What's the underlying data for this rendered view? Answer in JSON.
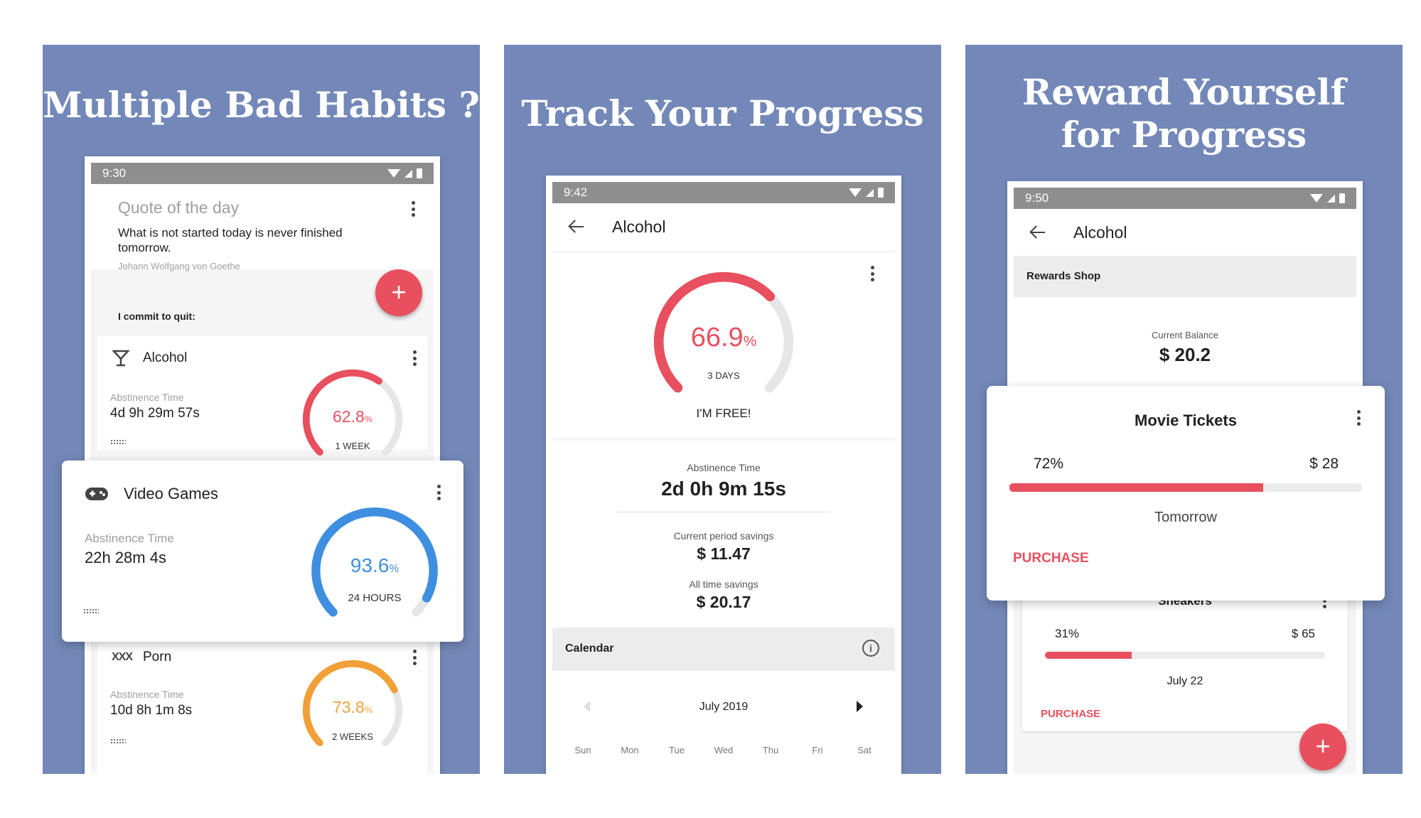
{
  "colors": {
    "panel_bg": "#7388b8",
    "accent_red": "#e8505f",
    "blue": "#3f8fe0",
    "orange": "#f0a037",
    "track": "#e6e6e6"
  },
  "panel1": {
    "title": "Multiple Bad Habits ?",
    "status_time": "9:30",
    "quote": {
      "heading": "Quote of the day",
      "text": "What is not started today is never finished tomorrow.",
      "author": "Johann Wolfgang von Goethe"
    },
    "fab_label": "+",
    "commit_label": "I commit to quit:",
    "habits": [
      {
        "name": "Alcohol",
        "icon": "cocktail-glass-icon",
        "abstinence_label": "Abstinence Time",
        "time": "4d 9h 29m 57s",
        "percent": "62.8",
        "percent_sign": "%",
        "fraction": 0.628,
        "period": "1 WEEK"
      },
      {
        "name": "Video Games",
        "icon": "gamepad-icon",
        "abstinence_label": "Abstinence Time",
        "time": "22h 28m 4s",
        "percent": "93.6",
        "percent_sign": "%",
        "fraction": 0.936,
        "period": "24 HOURS"
      },
      {
        "name": "Porn",
        "icon": "xxx-icon",
        "icon_text": "XXX",
        "abstinence_label": "Abstinence Time",
        "time": "10d 8h 1m 8s",
        "percent": "73.8",
        "percent_sign": "%",
        "fraction": 0.738,
        "period": "2 WEEKS"
      }
    ]
  },
  "panel2": {
    "title": "Track Your Progress",
    "status_time": "9:42",
    "appbar_title": "Alcohol",
    "gauge": {
      "percent": "66.9",
      "percent_sign": "%",
      "fraction": 0.669,
      "period": "3 DAYS"
    },
    "free_label": "I'M FREE!",
    "abstinence_label": "Abstinence Time",
    "abstinence_value": "2d 0h 9m 15s",
    "current_savings_label": "Current period savings",
    "current_savings_value": "$ 11.47",
    "all_savings_label": "All time savings",
    "all_savings_value": "$ 20.17",
    "calendar_label": "Calendar",
    "month": "July 2019",
    "weekdays": [
      "Sun",
      "Mon",
      "Tue",
      "Wed",
      "Thu",
      "Fri",
      "Sat"
    ]
  },
  "panel3": {
    "title_line1": "Reward Yourself",
    "title_line2": "for Progress",
    "status_time": "9:50",
    "appbar_title": "Alcohol",
    "shop_label": "Rewards Shop",
    "balance_label": "Current Balance",
    "balance_value": "$ 20.2",
    "rewards": [
      {
        "name": "Movie Tickets",
        "percent": "72%",
        "fraction": 0.72,
        "price": "$ 28",
        "date": "Tomorrow",
        "action": "PURCHASE"
      },
      {
        "name": "Sneakers",
        "percent": "31%",
        "fraction": 0.31,
        "price": "$ 65",
        "date": "July 22",
        "action": "PURCHASE"
      }
    ],
    "fab_label": "+"
  }
}
